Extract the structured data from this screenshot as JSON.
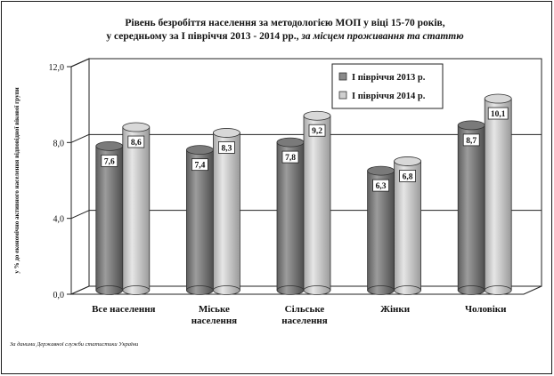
{
  "chart_data": {
    "type": "bar",
    "title_line1": "Рівень безробіття населення  за методологією МОП у віці 15-70 років,",
    "title_line2_main": "у середньому за І півріччя 2013 - 2014 рр., ",
    "title_line2_italic": "за місцем проживання та статтю",
    "ylabel": "у % до економічно активного населення відповідної вікової групи",
    "categories": [
      [
        "Все населення"
      ],
      [
        "Міське",
        "населення"
      ],
      [
        "Сільське",
        "населення"
      ],
      [
        "Жінки"
      ],
      [
        "Чоловіки"
      ]
    ],
    "series": [
      {
        "name": "І півріччя 2013 р.",
        "values": [
          7.6,
          7.4,
          7.8,
          6.3,
          8.7
        ],
        "labels": [
          "7,6",
          "7,4",
          "7,8",
          "6,3",
          "8,7"
        ],
        "color": "#8a8a8a"
      },
      {
        "name": "І півріччя 2014 р.",
        "values": [
          8.6,
          8.3,
          9.2,
          6.8,
          10.1
        ],
        "labels": [
          "8,6",
          "8,3",
          "9,2",
          "6,8",
          "10,1"
        ],
        "color": "#cfcfcf"
      }
    ],
    "ylim": [
      0,
      12
    ],
    "yticks": [
      0,
      4,
      8,
      12
    ],
    "ytick_labels": [
      "0,0",
      "4,0",
      "8,0",
      "12,0"
    ],
    "grid": true,
    "legend_position": "top-right",
    "source": "За даними Державної служби статистики  України"
  }
}
